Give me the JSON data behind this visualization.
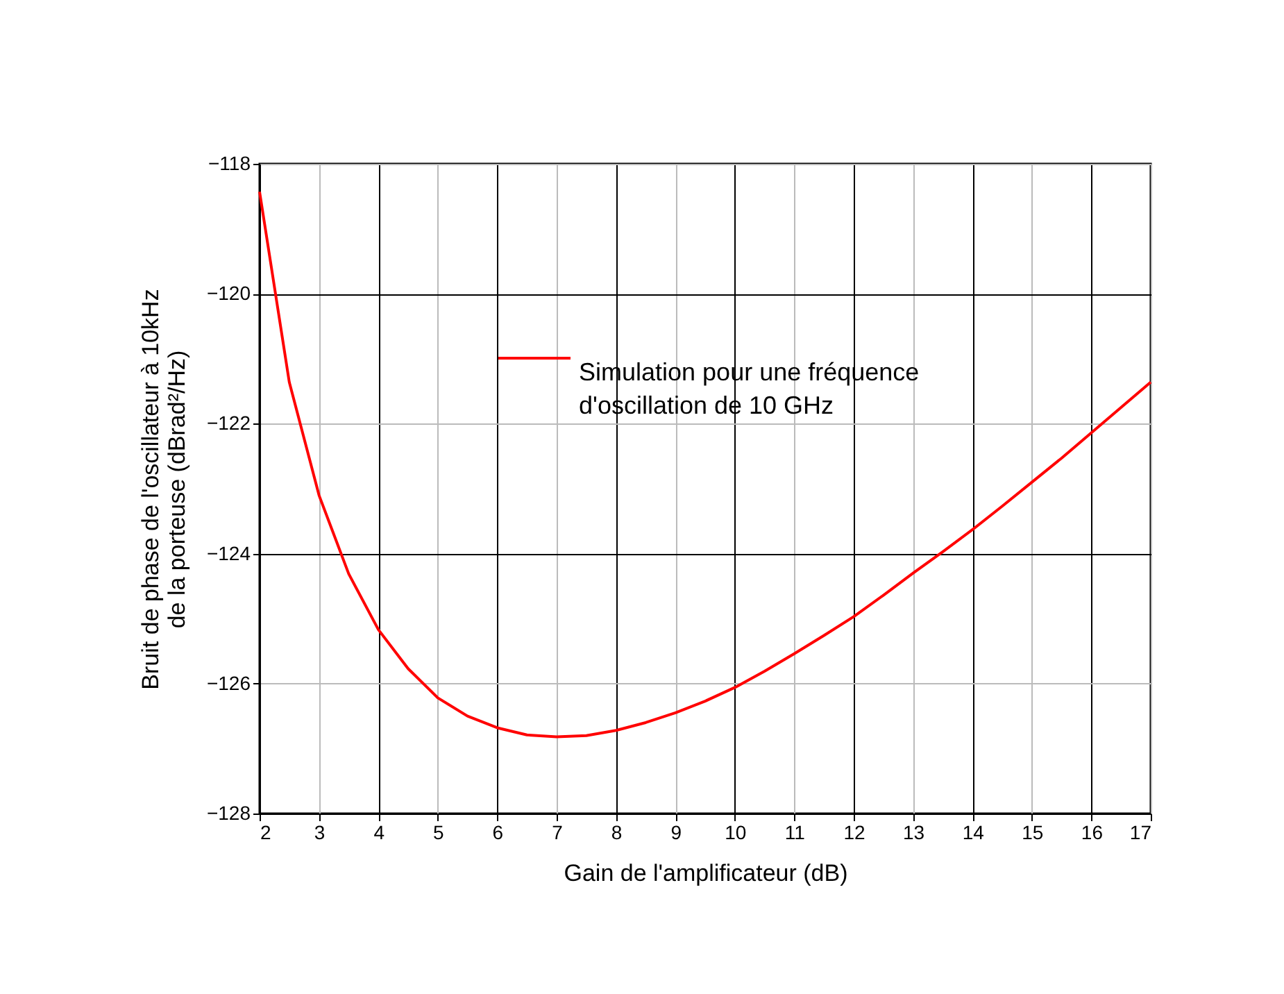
{
  "chart_data": {
    "type": "line",
    "xlabel": "Gain de l'amplificateur (dB)",
    "ylabel": "Bruit de phase de l'oscillateur à 10kHz\nde la porteuse (dBrad²/Hz)",
    "x": [
      2,
      2.5,
      3,
      3.5,
      4,
      4.5,
      5,
      5.5,
      6,
      6.5,
      7,
      7.5,
      8,
      8.5,
      9,
      9.5,
      10,
      10.5,
      11,
      11.5,
      12,
      12.5,
      13,
      13.5,
      14,
      14.5,
      15,
      15.5,
      16,
      16.5,
      17
    ],
    "series": [
      {
        "name": "Simulation pour une fréquence\nd'oscillation de 10 GHz",
        "color": "#ff0000",
        "values": [
          -118.43,
          -121.36,
          -123.1,
          -124.31,
          -125.17,
          -125.77,
          -126.22,
          -126.5,
          -126.68,
          -126.79,
          -126.82,
          -126.8,
          -126.72,
          -126.6,
          -126.45,
          -126.27,
          -126.06,
          -125.81,
          -125.54,
          -125.26,
          -124.97,
          -124.64,
          -124.3,
          -123.97,
          -123.63,
          -123.27,
          -122.9,
          -122.53,
          -122.14,
          -121.75,
          -121.36
        ]
      }
    ],
    "xlim": [
      2,
      17
    ],
    "xticks": [
      2,
      3,
      4,
      5,
      6,
      7,
      8,
      9,
      10,
      11,
      12,
      13,
      14,
      15,
      16,
      17
    ],
    "ylim": [
      -128,
      -118
    ],
    "yticks": [
      -128,
      -126,
      -124,
      -122,
      -120,
      -118
    ],
    "grid": true,
    "legend": "top",
    "marker": "none",
    "line_style": "solid"
  }
}
